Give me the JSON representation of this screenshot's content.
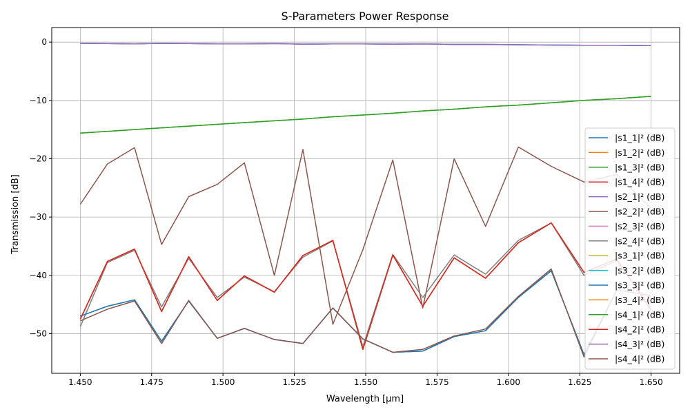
{
  "chart_data": {
    "type": "line",
    "title": "S-Parameters Power Response",
    "xlabel": "Wavelength [µm]",
    "ylabel": "Transmission [dB]",
    "xlim": [
      1.44,
      1.66
    ],
    "ylim": [
      -56.8,
      2.5
    ],
    "grid": true,
    "legend_position": "right",
    "x_ticks": [
      1.45,
      1.475,
      1.5,
      1.525,
      1.55,
      1.575,
      1.6,
      1.625,
      1.65
    ],
    "x_tick_labels": [
      "1.450",
      "1.475",
      "1.500",
      "1.525",
      "1.550",
      "1.575",
      "1.600",
      "1.625",
      "1.650"
    ],
    "y_ticks": [
      0,
      -10,
      -20,
      -30,
      -40,
      -50
    ],
    "y_tick_labels": [
      "0",
      "−10",
      "−20",
      "−30",
      "−40",
      "−50"
    ],
    "x": [
      1.45,
      1.4595,
      1.469,
      1.4785,
      1.488,
      1.498,
      1.5075,
      1.518,
      1.528,
      1.5385,
      1.549,
      1.5595,
      1.57,
      1.581,
      1.592,
      1.6035,
      1.615,
      1.6265,
      1.638,
      1.65
    ],
    "series": [
      {
        "name": "|s1_1|² (dB)",
        "color": "#1f77b4",
        "values": [
          -47.0,
          -45.3,
          -44.2,
          -51.3,
          -44.4,
          -50.8,
          -49.1,
          -51.0,
          -51.7,
          -45.6,
          -50.9,
          -53.2,
          -53.0,
          -50.5,
          -49.5,
          -43.8,
          -39.2,
          -53.6,
          -42.5,
          -43.5
        ]
      },
      {
        "name": "|s1_2|² (dB)",
        "color": "#ff7f0e",
        "values": [
          -47.5,
          -37.6,
          -35.5,
          -46.2,
          -36.8,
          -44.3,
          -40.1,
          -42.9,
          -36.6,
          -34.0,
          -52.7,
          -36.5,
          -45.3,
          -37.0,
          -40.5,
          -34.4,
          -31.0,
          -39.5,
          -37.2,
          -46.0
        ]
      },
      {
        "name": "|s1_3|² (dB)",
        "color": "#2ca02c",
        "values": [
          -15.6,
          -15.3,
          -15.0,
          -14.7,
          -14.4,
          -14.1,
          -13.8,
          -13.5,
          -13.2,
          -12.8,
          -12.5,
          -12.2,
          -11.8,
          -11.5,
          -11.1,
          -10.8,
          -10.4,
          -10.0,
          -9.7,
          -9.3
        ]
      },
      {
        "name": "|s1_4|² (dB)",
        "color": "#d62728",
        "values": [
          -47.5,
          -37.6,
          -35.5,
          -46.2,
          -36.8,
          -44.3,
          -40.1,
          -42.9,
          -36.6,
          -34.0,
          -52.7,
          -36.5,
          -45.3,
          -37.0,
          -40.5,
          -34.4,
          -31.0,
          -39.5,
          -37.2,
          -46.0
        ]
      },
      {
        "name": "|s2_1|² (dB)",
        "color": "#9467bd",
        "values": [
          -0.2,
          -0.25,
          -0.3,
          -0.2,
          -0.25,
          -0.3,
          -0.3,
          -0.25,
          -0.35,
          -0.3,
          -0.3,
          -0.35,
          -0.3,
          -0.4,
          -0.4,
          -0.45,
          -0.5,
          -0.55,
          -0.55,
          -0.6
        ]
      },
      {
        "name": "|s2_2|² (dB)",
        "color": "#8c564b",
        "values": [
          -27.8,
          -20.9,
          -18.1,
          -34.7,
          -26.5,
          -24.4,
          -20.7,
          -40.0,
          -18.4,
          -48.4,
          -35.6,
          -20.2,
          -45.6,
          -20.0,
          -31.6,
          -18.0,
          -21.3,
          -24.0,
          -22.7,
          -28.5
        ]
      },
      {
        "name": "|s2_3|² (dB)",
        "color": "#e377c2",
        "values": [
          -0.2,
          -0.25,
          -0.3,
          -0.2,
          -0.25,
          -0.3,
          -0.3,
          -0.25,
          -0.35,
          -0.3,
          -0.3,
          -0.35,
          -0.3,
          -0.4,
          -0.4,
          -0.45,
          -0.5,
          -0.55,
          -0.55,
          -0.6
        ]
      },
      {
        "name": "|s2_4|² (dB)",
        "color": "#7f7f7f",
        "values": [
          -48.8,
          -37.8,
          -35.7,
          -45.4,
          -37.1,
          -43.8,
          -40.3,
          -42.8,
          -36.9,
          -34.1,
          -52.2,
          -36.4,
          -43.8,
          -36.5,
          -39.8,
          -34.0,
          -31.0,
          -40.0,
          -37.5,
          -45.5
        ]
      },
      {
        "name": "|s3_1|² (dB)",
        "color": "#bcbd22",
        "values": [
          -15.6,
          -15.3,
          -15.0,
          -14.7,
          -14.4,
          -14.1,
          -13.8,
          -13.5,
          -13.2,
          -12.8,
          -12.5,
          -12.2,
          -11.8,
          -11.5,
          -11.1,
          -10.8,
          -10.4,
          -10.0,
          -9.7,
          -9.3
        ]
      },
      {
        "name": "|s3_2|² (dB)",
        "color": "#17becf",
        "values": [
          -0.2,
          -0.25,
          -0.3,
          -0.2,
          -0.25,
          -0.3,
          -0.3,
          -0.25,
          -0.35,
          -0.3,
          -0.3,
          -0.35,
          -0.3,
          -0.4,
          -0.4,
          -0.45,
          -0.5,
          -0.55,
          -0.55,
          -0.6
        ]
      },
      {
        "name": "|s3_3|² (dB)",
        "color": "#1f77b4",
        "values": [
          -47.0,
          -45.3,
          -44.2,
          -51.3,
          -44.4,
          -50.8,
          -49.1,
          -51.0,
          -51.7,
          -45.6,
          -50.9,
          -53.2,
          -53.0,
          -50.5,
          -49.5,
          -43.8,
          -39.2,
          -53.6,
          -42.5,
          -43.5
        ]
      },
      {
        "name": "|s3_4|² (dB)",
        "color": "#ff7f0e",
        "values": [
          -47.5,
          -37.6,
          -35.5,
          -46.2,
          -36.8,
          -44.3,
          -40.1,
          -42.9,
          -36.6,
          -34.0,
          -52.7,
          -36.5,
          -45.3,
          -37.0,
          -40.5,
          -34.4,
          -31.0,
          -39.5,
          -37.2,
          -46.0
        ]
      },
      {
        "name": "|s4_1|² (dB)",
        "color": "#2ca02c",
        "values": [
          -15.6,
          -15.3,
          -15.0,
          -14.7,
          -14.4,
          -14.1,
          -13.8,
          -13.5,
          -13.2,
          -12.8,
          -12.5,
          -12.2,
          -11.8,
          -11.5,
          -11.1,
          -10.8,
          -10.4,
          -10.0,
          -9.7,
          -9.3
        ]
      },
      {
        "name": "|s4_2|² (dB)",
        "color": "#d62728",
        "values": [
          -47.5,
          -37.6,
          -35.5,
          -46.2,
          -36.8,
          -44.3,
          -40.1,
          -42.9,
          -36.6,
          -34.0,
          -52.7,
          -36.5,
          -45.3,
          -37.0,
          -40.5,
          -34.4,
          -31.0,
          -39.5,
          -37.2,
          -46.0
        ]
      },
      {
        "name": "|s4_3|² (dB)",
        "color": "#9467bd",
        "values": [
          -0.2,
          -0.25,
          -0.3,
          -0.2,
          -0.25,
          -0.3,
          -0.3,
          -0.25,
          -0.35,
          -0.3,
          -0.3,
          -0.35,
          -0.3,
          -0.4,
          -0.4,
          -0.45,
          -0.5,
          -0.55,
          -0.55,
          -0.6
        ]
      },
      {
        "name": "|s4_4|² (dB)",
        "color": "#8c564b",
        "values": [
          -47.8,
          -45.8,
          -44.4,
          -51.7,
          -44.3,
          -50.8,
          -49.1,
          -51.0,
          -51.7,
          -45.6,
          -50.9,
          -53.2,
          -52.7,
          -50.4,
          -49.2,
          -43.6,
          -38.9,
          -54.0,
          -42.5,
          -43.5
        ]
      }
    ]
  }
}
